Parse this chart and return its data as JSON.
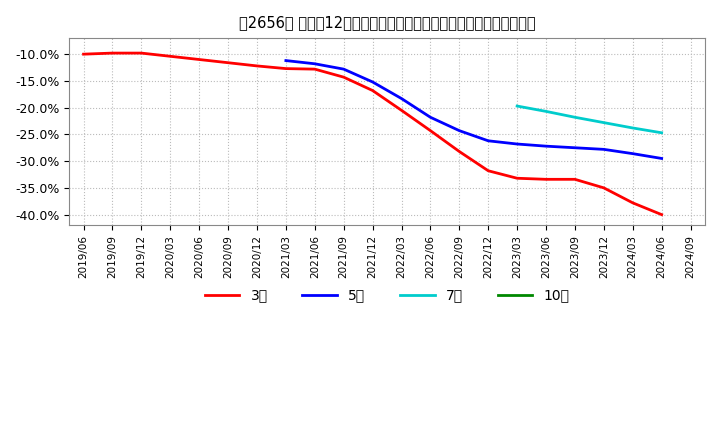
{
  "title": "［2656］ 売上高12か月移動合計の対前年同期増減率の平均値の推移",
  "background_color": "#ffffff",
  "grid_color": "#aaaaaa",
  "ylim": [
    -0.42,
    -0.07
  ],
  "yticks": [
    -0.4,
    -0.35,
    -0.3,
    -0.25,
    -0.2,
    -0.15,
    -0.1
  ],
  "series": {
    "3year": {
      "color": "#ff0000",
      "label": "3年",
      "x": [
        "2019/06",
        "2019/09",
        "2019/12",
        "2020/03",
        "2020/06",
        "2020/09",
        "2020/12",
        "2021/03",
        "2021/06",
        "2021/09",
        "2021/12",
        "2022/03",
        "2022/06",
        "2022/09",
        "2022/12",
        "2023/03",
        "2023/06",
        "2023/09",
        "2023/12",
        "2024/03",
        "2024/06"
      ],
      "y": [
        -0.1,
        -0.098,
        -0.098,
        -0.104,
        -0.11,
        -0.116,
        -0.122,
        -0.127,
        -0.128,
        -0.143,
        -0.168,
        -0.205,
        -0.243,
        -0.282,
        -0.318,
        -0.332,
        -0.334,
        -0.334,
        -0.35,
        -0.378,
        -0.4
      ]
    },
    "5year": {
      "color": "#0000ff",
      "label": "5年",
      "x": [
        "2021/03",
        "2021/06",
        "2021/09",
        "2021/12",
        "2022/03",
        "2022/06",
        "2022/09",
        "2022/12",
        "2023/03",
        "2023/06",
        "2023/09",
        "2023/12",
        "2024/03",
        "2024/06"
      ],
      "y": [
        -0.112,
        -0.118,
        -0.128,
        -0.152,
        -0.183,
        -0.218,
        -0.243,
        -0.262,
        -0.268,
        -0.272,
        -0.275,
        -0.278,
        -0.286,
        -0.295
      ]
    },
    "7year": {
      "color": "#00cccc",
      "label": "7年",
      "x": [
        "2023/03",
        "2023/06",
        "2023/09",
        "2023/12",
        "2024/03",
        "2024/06"
      ],
      "y": [
        -0.197,
        -0.207,
        -0.218,
        -0.228,
        -0.238,
        -0.247
      ]
    },
    "10year": {
      "color": "#008800",
      "label": "10年",
      "x": [],
      "y": []
    }
  },
  "xtick_labels": [
    "2019/06",
    "2019/09",
    "2019/12",
    "2020/03",
    "2020/06",
    "2020/09",
    "2020/12",
    "2021/03",
    "2021/06",
    "2021/09",
    "2021/12",
    "2022/03",
    "2022/06",
    "2022/09",
    "2022/12",
    "2023/03",
    "2023/06",
    "2023/09",
    "2023/12",
    "2024/03",
    "2024/06",
    "2024/09"
  ]
}
